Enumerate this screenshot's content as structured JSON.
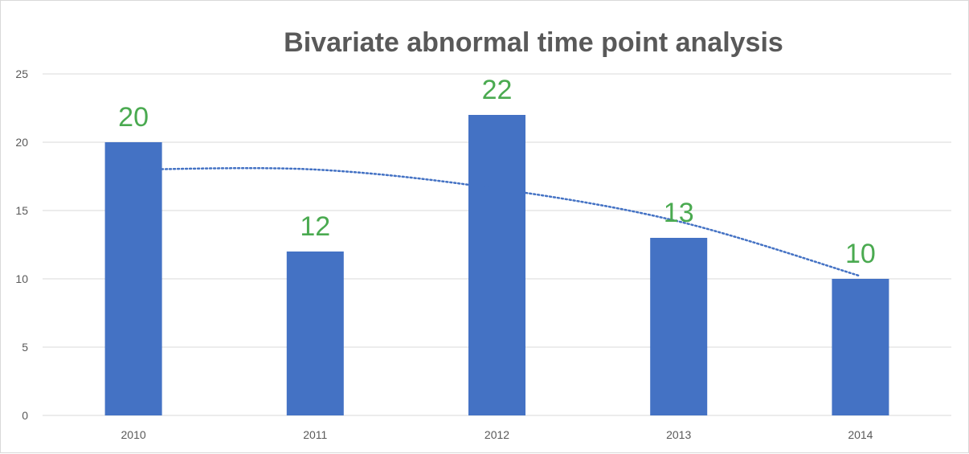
{
  "chart_data": {
    "type": "bar",
    "title": "Bivariate abnormal time point analysis",
    "categories": [
      "2010",
      "2011",
      "2012",
      "2013",
      "2014"
    ],
    "values": [
      20,
      12,
      22,
      13,
      10
    ],
    "data_labels": [
      "20",
      "12",
      "22",
      "13",
      "10"
    ],
    "trendline": {
      "type": "polynomial",
      "style": "dotted",
      "values": [
        18.0,
        18.0,
        16.6,
        14.2,
        10.2
      ]
    },
    "ylim": [
      0,
      25
    ],
    "yticks": [
      0,
      5,
      10,
      15,
      20,
      25
    ],
    "ytick_labels": [
      "0",
      "5",
      "10",
      "15",
      "20",
      "25"
    ],
    "xlabel": "",
    "ylabel": "",
    "grid": true,
    "legend": "none",
    "colors": {
      "bar": "#4472c4",
      "trendline": "#4472c4",
      "data_label": "#4aaa50",
      "gridline": "#d9d9d9",
      "title": "#595959",
      "tick_label": "#595959"
    }
  }
}
